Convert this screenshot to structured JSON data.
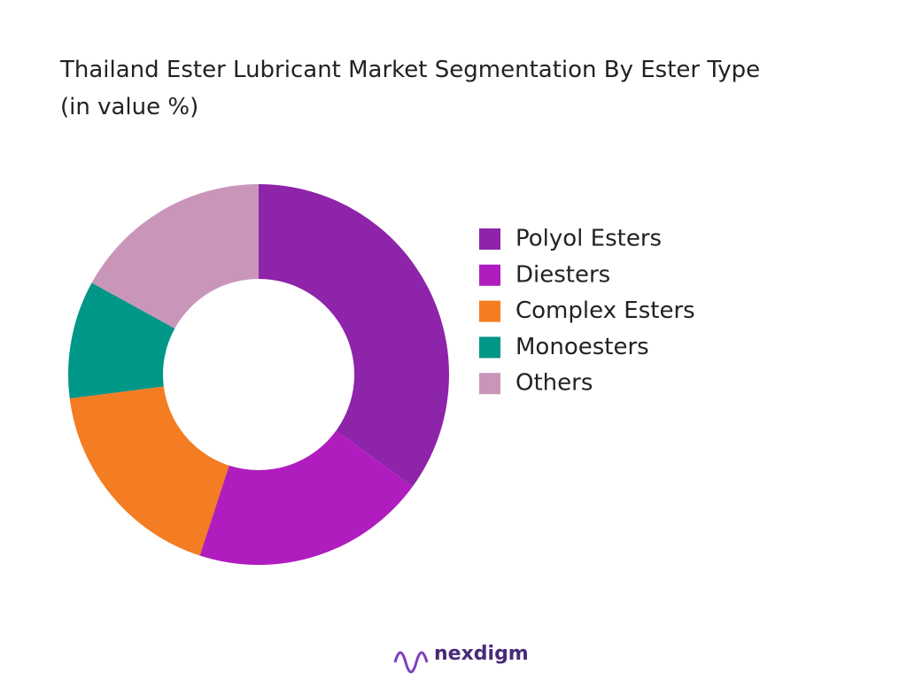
{
  "chart_data": {
    "type": "donut",
    "title": "Thailand Ester Lubricant Market Segmentation By Ester Type (in value %)",
    "categories": [
      "Polyol Esters",
      "Diesters",
      "Complex Esters",
      "Monoesters",
      "Others"
    ],
    "values": [
      35,
      20,
      18,
      10,
      17
    ],
    "colors": [
      "#8e24aa",
      "#b01dbf",
      "#f47c22",
      "#009688",
      "#c996b9"
    ],
    "legend_position": "right"
  },
  "brand": "nexdigm"
}
